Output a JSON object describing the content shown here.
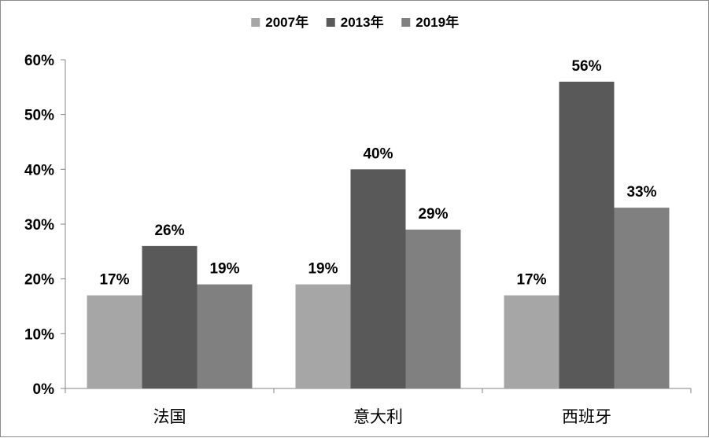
{
  "chart_data": {
    "type": "bar",
    "categories": [
      "法国",
      "意大利",
      "西班牙"
    ],
    "series": [
      {
        "name": "2007年",
        "values": [
          17,
          19,
          17
        ],
        "color": "#a6a6a6"
      },
      {
        "name": "2013年",
        "values": [
          26,
          40,
          56
        ],
        "color": "#595959"
      },
      {
        "name": "2019年",
        "values": [
          19,
          29,
          33
        ],
        "color": "#808080"
      }
    ],
    "data_labels": [
      [
        "17%",
        "19%",
        "17%"
      ],
      [
        "26%",
        "40%",
        "56%"
      ],
      [
        "19%",
        "29%",
        "33%"
      ]
    ],
    "y_ticks": [
      0,
      10,
      20,
      30,
      40,
      50,
      60
    ],
    "y_tick_labels": [
      "0%",
      "10%",
      "20%",
      "30%",
      "40%",
      "50%",
      "60%"
    ],
    "ylim": [
      0,
      60
    ],
    "title": "",
    "xlabel": "",
    "ylabel": "",
    "grid": false,
    "legend_position": "top-center"
  }
}
